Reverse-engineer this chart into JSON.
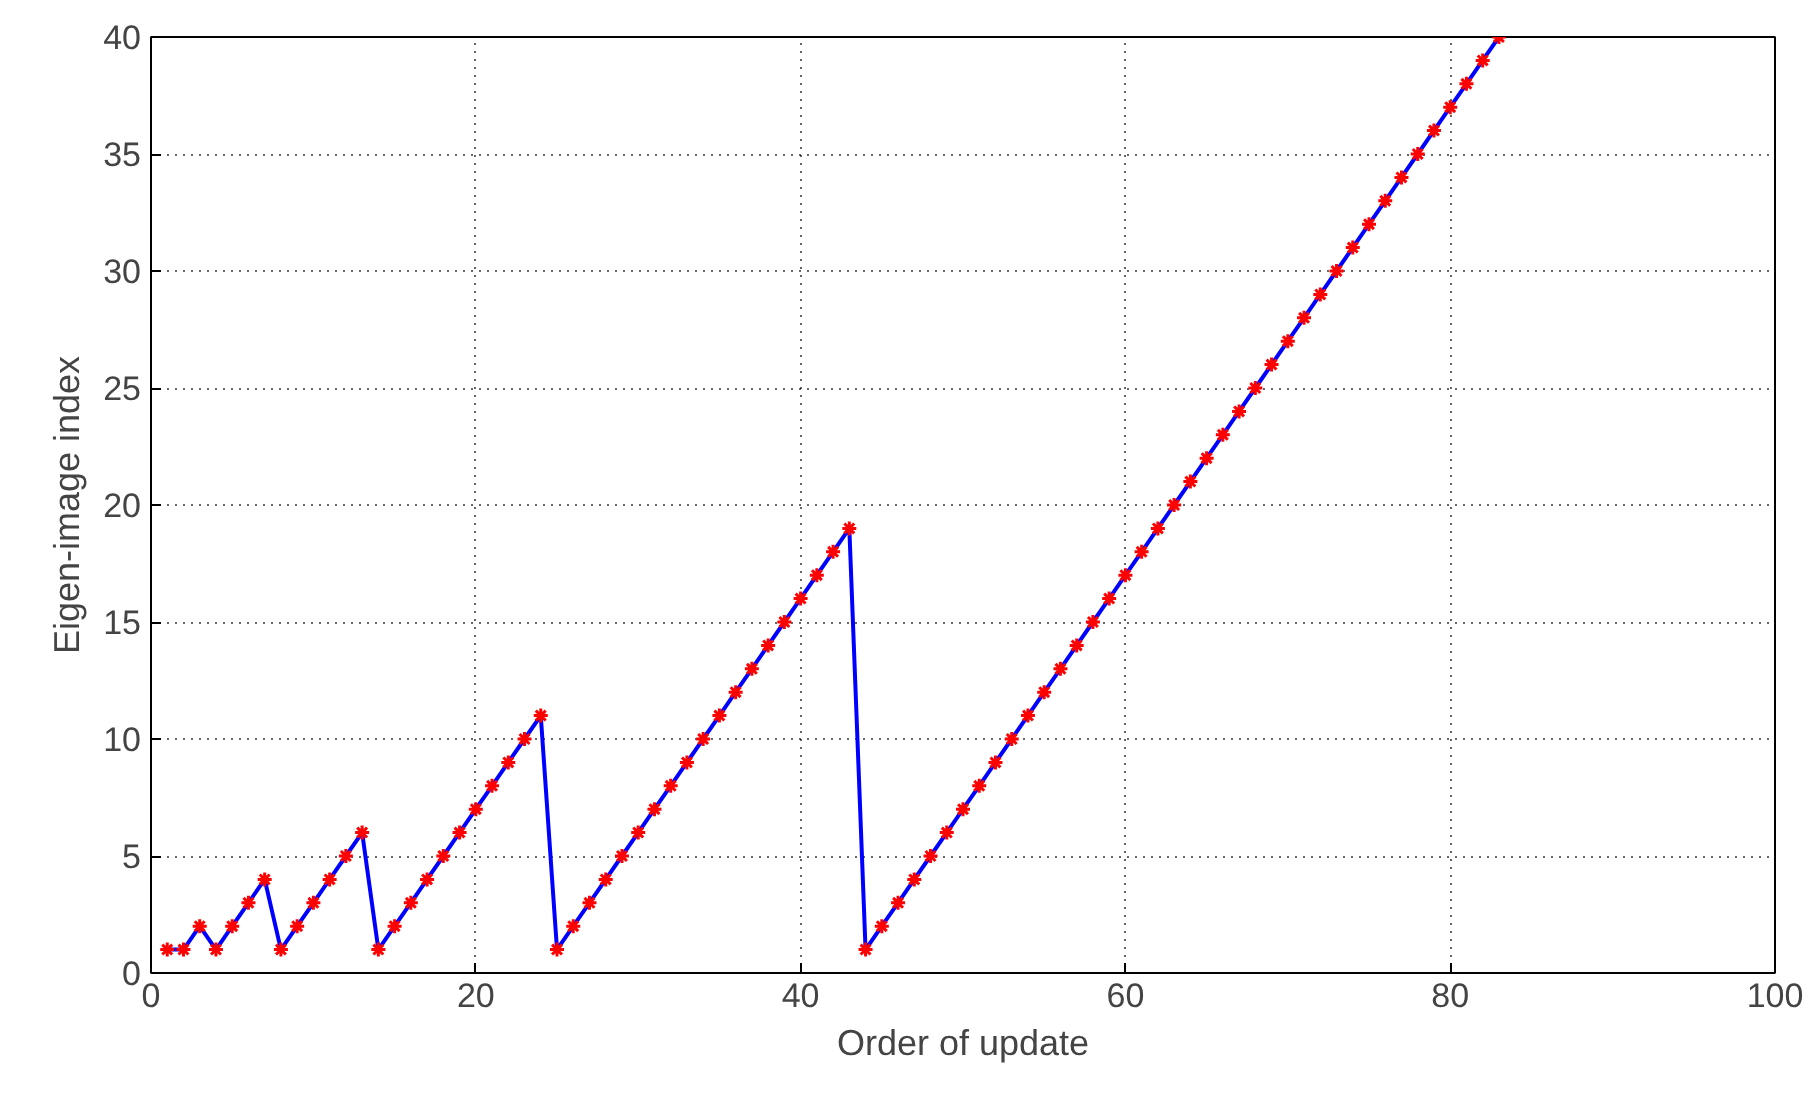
{
  "chart_data": {
    "type": "line",
    "xlabel": "Order of update",
    "ylabel": "Eigen-image index",
    "x": [
      1,
      2,
      3,
      4,
      5,
      6,
      7,
      8,
      9,
      10,
      11,
      12,
      13,
      14,
      15,
      16,
      17,
      18,
      19,
      20,
      21,
      22,
      23,
      24,
      25,
      26,
      27,
      28,
      29,
      30,
      31,
      32,
      33,
      34,
      35,
      36,
      37,
      38,
      39,
      40,
      41,
      42,
      43,
      44,
      45,
      46,
      47,
      48,
      49,
      50,
      51,
      52,
      53,
      54,
      55,
      56,
      57,
      58,
      59,
      60,
      61,
      62,
      63,
      64,
      65,
      66,
      67,
      68,
      69,
      70,
      71,
      72,
      73,
      74,
      75,
      76,
      77,
      78,
      79,
      80,
      81,
      82,
      83
    ],
    "series": [
      {
        "color": "#0000ff",
        "marker": "none",
        "values": [
          1,
          1,
          2,
          1,
          2,
          3,
          4,
          1,
          2,
          3,
          4,
          5,
          6,
          1,
          2,
          3,
          4,
          5,
          6,
          7,
          8,
          9,
          10,
          11,
          1,
          2,
          3,
          4,
          5,
          6,
          7,
          8,
          9,
          10,
          11,
          12,
          13,
          14,
          15,
          16,
          17,
          18,
          19,
          1,
          2,
          3,
          4,
          5,
          6,
          7,
          8,
          9,
          10,
          11,
          12,
          13,
          14,
          15,
          16,
          17,
          18,
          19,
          20,
          21,
          22,
          23,
          24,
          25,
          26,
          27,
          28,
          29,
          30,
          31,
          32,
          33,
          34,
          35,
          36,
          37,
          38,
          39,
          40
        ]
      },
      {
        "type": "scatter",
        "marker": "cross",
        "color": "#ff0000",
        "values": [
          1,
          1,
          2,
          1,
          2,
          3,
          4,
          1,
          2,
          3,
          4,
          5,
          6,
          1,
          2,
          3,
          4,
          5,
          6,
          7,
          8,
          9,
          10,
          11,
          1,
          2,
          3,
          4,
          5,
          6,
          7,
          8,
          9,
          10,
          11,
          12,
          13,
          14,
          15,
          16,
          17,
          18,
          19,
          1,
          2,
          3,
          4,
          5,
          6,
          7,
          8,
          9,
          10,
          11,
          12,
          13,
          14,
          15,
          16,
          17,
          18,
          19,
          20,
          21,
          22,
          23,
          24,
          25,
          26,
          27,
          28,
          29,
          30,
          31,
          32,
          33,
          34,
          35,
          36,
          37,
          38,
          39,
          40
        ]
      }
    ],
    "line_style": "solid",
    "grid": true,
    "xlim": [
      0,
      100
    ],
    "xticks": [
      0,
      20,
      40,
      60,
      80,
      100
    ],
    "ylim": [
      0,
      40
    ],
    "yticks": [
      0,
      5,
      10,
      15,
      20,
      25,
      30,
      35,
      40
    ]
  }
}
